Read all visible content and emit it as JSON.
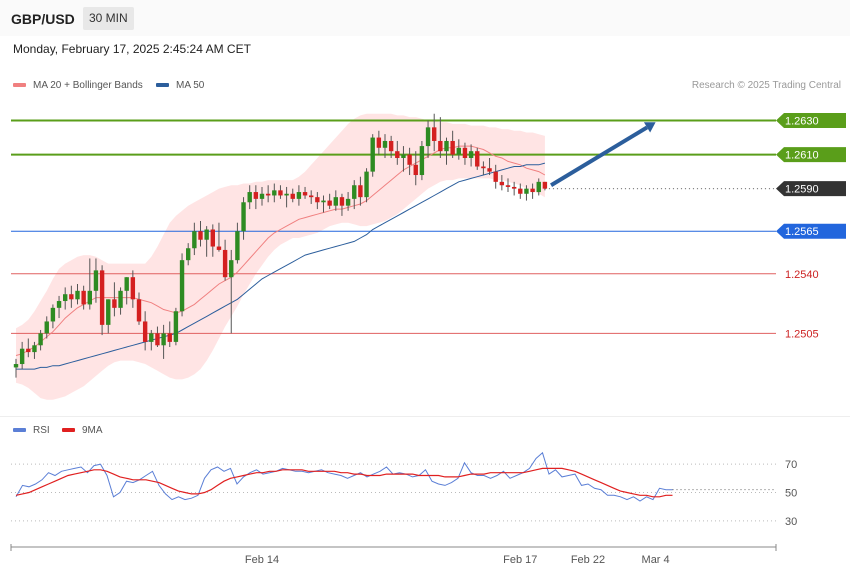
{
  "header": {
    "symbol": "GBP/USD",
    "timeframe": "30 MIN"
  },
  "datetime": "Monday, February 17, 2025 2:45:24 AM CET",
  "legend": {
    "ma20": {
      "label": "MA 20 + Bollinger Bands",
      "color": "#f08080"
    },
    "ma50": {
      "label": "MA 50",
      "color": "#2c5e9c"
    },
    "rsi": {
      "label": "RSI",
      "color": "#5b7fd6"
    },
    "rsi_ma": {
      "label": "9MA",
      "color": "#e02020"
    }
  },
  "copyright": "Research © 2025 Trading Central",
  "chart_data": [
    {
      "type": "candlestick",
      "title": "",
      "ylim": [
        1.246,
        1.2645
      ],
      "levels": [
        {
          "value": 1.263,
          "label": "1.2630",
          "kind": "resistance",
          "color": "#5a9e1a"
        },
        {
          "value": 1.261,
          "label": "1.2610",
          "kind": "resistance",
          "color": "#5a9e1a"
        },
        {
          "value": 1.259,
          "label": "1.2590",
          "kind": "last",
          "color": "#333333"
        },
        {
          "value": 1.2565,
          "label": "1.2565",
          "kind": "pivot",
          "color": "#2266dd"
        },
        {
          "value": 1.254,
          "label": "1.2540",
          "kind": "support",
          "color": "#e06060"
        },
        {
          "value": 1.2505,
          "label": "1.2505",
          "kind": "support",
          "color": "#e06060"
        }
      ],
      "candles": [
        [
          1.2485,
          1.249,
          1.2479,
          1.2487
        ],
        [
          1.2487,
          1.25,
          1.2484,
          1.2496
        ],
        [
          1.2496,
          1.2502,
          1.2491,
          1.2494
        ],
        [
          1.2494,
          1.25,
          1.249,
          1.2498
        ],
        [
          1.2498,
          1.2507,
          1.2495,
          1.2505
        ],
        [
          1.2505,
          1.2515,
          1.2502,
          1.2512
        ],
        [
          1.2512,
          1.2522,
          1.2508,
          1.252
        ],
        [
          1.252,
          1.2527,
          1.2514,
          1.2524
        ],
        [
          1.2524,
          1.2532,
          1.2519,
          1.2528
        ],
        [
          1.2528,
          1.2533,
          1.252,
          1.2525
        ],
        [
          1.2525,
          1.2534,
          1.2522,
          1.253
        ],
        [
          1.253,
          1.2533,
          1.2519,
          1.2522
        ],
        [
          1.2522,
          1.2549,
          1.2519,
          1.253
        ],
        [
          1.253,
          1.2549,
          1.2523,
          1.2542
        ],
        [
          1.2542,
          1.2545,
          1.2504,
          1.251
        ],
        [
          1.251,
          1.2525,
          1.2505,
          1.2525
        ],
        [
          1.2525,
          1.2535,
          1.2515,
          1.252
        ],
        [
          1.252,
          1.2532,
          1.2516,
          1.253
        ],
        [
          1.253,
          1.2538,
          1.2522,
          1.2538
        ],
        [
          1.2538,
          1.2542,
          1.252,
          1.2525
        ],
        [
          1.2525,
          1.2529,
          1.251,
          1.2512
        ],
        [
          1.2512,
          1.2518,
          1.2495,
          1.25
        ],
        [
          1.25,
          1.2507,
          1.2495,
          1.2505
        ],
        [
          1.2505,
          1.2509,
          1.2497,
          1.2498
        ],
        [
          1.2498,
          1.251,
          1.249,
          1.2505
        ],
        [
          1.2505,
          1.2512,
          1.2497,
          1.25
        ],
        [
          1.25,
          1.252,
          1.2498,
          1.2518
        ],
        [
          1.2518,
          1.2552,
          1.2515,
          1.2548
        ],
        [
          1.2548,
          1.2558,
          1.2545,
          1.2555
        ],
        [
          1.2555,
          1.257,
          1.2551,
          1.2565
        ],
        [
          1.2565,
          1.2571,
          1.2556,
          1.256
        ],
        [
          1.256,
          1.2568,
          1.255,
          1.2566
        ],
        [
          1.2566,
          1.2569,
          1.255,
          1.2556
        ],
        [
          1.2556,
          1.257,
          1.2553,
          1.2554
        ],
        [
          1.2554,
          1.256,
          1.2536,
          1.2538
        ],
        [
          1.2538,
          1.2554,
          1.2505,
          1.2548
        ],
        [
          1.2548,
          1.257,
          1.2546,
          1.2565
        ],
        [
          1.2565,
          1.2585,
          1.256,
          1.2582
        ],
        [
          1.2582,
          1.2592,
          1.2578,
          1.2588
        ],
        [
          1.2588,
          1.2592,
          1.2578,
          1.2584
        ],
        [
          1.2584,
          1.2591,
          1.258,
          1.2587
        ],
        [
          1.2587,
          1.2592,
          1.2582,
          1.2586
        ],
        [
          1.2586,
          1.2593,
          1.2582,
          1.2589
        ],
        [
          1.2589,
          1.2592,
          1.2584,
          1.2586
        ],
        [
          1.2586,
          1.2591,
          1.2579,
          1.2587
        ],
        [
          1.2587,
          1.259,
          1.2582,
          1.2584
        ],
        [
          1.2584,
          1.2592,
          1.258,
          1.2588
        ],
        [
          1.2588,
          1.2591,
          1.2584,
          1.2586
        ],
        [
          1.2586,
          1.2589,
          1.2581,
          1.2585
        ],
        [
          1.2585,
          1.2588,
          1.2578,
          1.2582
        ],
        [
          1.2582,
          1.2586,
          1.2576,
          1.2583
        ],
        [
          1.2583,
          1.2587,
          1.2578,
          1.258
        ],
        [
          1.258,
          1.2589,
          1.2577,
          1.2585
        ],
        [
          1.2585,
          1.2587,
          1.2574,
          1.258
        ],
        [
          1.258,
          1.2588,
          1.2577,
          1.2584
        ],
        [
          1.2584,
          1.2595,
          1.2578,
          1.2592
        ],
        [
          1.2592,
          1.2597,
          1.258,
          1.2585
        ],
        [
          1.2585,
          1.2602,
          1.2582,
          1.26
        ],
        [
          1.26,
          1.2622,
          1.2597,
          1.262
        ],
        [
          1.262,
          1.2624,
          1.261,
          1.2614
        ],
        [
          1.2614,
          1.2622,
          1.2608,
          1.2618
        ],
        [
          1.2618,
          1.2621,
          1.2608,
          1.2612
        ],
        [
          1.2612,
          1.2618,
          1.2604,
          1.2608
        ],
        [
          1.2608,
          1.2615,
          1.26,
          1.261
        ],
        [
          1.261,
          1.2614,
          1.2598,
          1.2604
        ],
        [
          1.2604,
          1.2612,
          1.2592,
          1.2598
        ],
        [
          1.2598,
          1.2618,
          1.2595,
          1.2615
        ],
        [
          1.2615,
          1.263,
          1.2608,
          1.2626
        ],
        [
          1.2626,
          1.2634,
          1.2612,
          1.2618
        ],
        [
          1.2618,
          1.2632,
          1.2608,
          1.2612
        ],
        [
          1.2612,
          1.262,
          1.2604,
          1.2618
        ],
        [
          1.2618,
          1.2624,
          1.2608,
          1.261
        ],
        [
          1.261,
          1.2619,
          1.2607,
          1.2614
        ],
        [
          1.2614,
          1.2617,
          1.2604,
          1.2608
        ],
        [
          1.2608,
          1.2616,
          1.2603,
          1.2612
        ],
        [
          1.2612,
          1.2614,
          1.2601,
          1.2603
        ],
        [
          1.2603,
          1.2606,
          1.2598,
          1.2602
        ],
        [
          1.2602,
          1.2608,
          1.2598,
          1.26
        ],
        [
          1.26,
          1.2604,
          1.259,
          1.2594
        ],
        [
          1.2594,
          1.2598,
          1.2589,
          1.2592
        ],
        [
          1.2592,
          1.2596,
          1.2588,
          1.2591
        ],
        [
          1.2591,
          1.2594,
          1.2586,
          1.259
        ],
        [
          1.259,
          1.2593,
          1.2584,
          1.2587
        ],
        [
          1.2587,
          1.2592,
          1.2583,
          1.259
        ],
        [
          1.259,
          1.2593,
          1.2584,
          1.2588
        ],
        [
          1.2588,
          1.2596,
          1.2586,
          1.2594
        ],
        [
          1.2594,
          1.2594,
          1.2589,
          1.259
        ]
      ],
      "ma20": [
        1.2492,
        1.2493,
        1.2495,
        1.2497,
        1.25,
        1.2503,
        1.2506,
        1.251,
        1.2514,
        1.2517,
        1.252,
        1.2522,
        1.2524,
        1.2526,
        1.2526,
        1.2526,
        1.2526,
        1.2526,
        1.2526,
        1.2526,
        1.2525,
        1.2524,
        1.2523,
        1.2521,
        1.2519,
        1.2518,
        1.2517,
        1.2518,
        1.252,
        1.2522,
        1.2525,
        1.2528,
        1.2531,
        1.2534,
        1.2536,
        1.2538,
        1.2541,
        1.2545,
        1.2549,
        1.2553,
        1.2557,
        1.2561,
        1.2564,
        1.2566,
        1.2568,
        1.257,
        1.2572,
        1.2573,
        1.2574,
        1.2575,
        1.2576,
        1.2577,
        1.2578,
        1.2578,
        1.2579,
        1.258,
        1.2581,
        1.2583,
        1.2586,
        1.2589,
        1.2592,
        1.2595,
        1.2598,
        1.2601,
        1.2603,
        1.2605,
        1.2607,
        1.2609,
        1.2611,
        1.2613,
        1.2614,
        1.2614,
        1.2615,
        1.2615,
        1.2615,
        1.2614,
        1.2613,
        1.2611,
        1.2609,
        1.2608,
        1.2606,
        1.2605,
        1.2604,
        1.2602,
        1.2601,
        1.26,
        1.2598
      ],
      "ma50": [
        1.2484,
        1.2484,
        1.2484,
        1.2484,
        1.2485,
        1.2485,
        1.2486,
        1.2486,
        1.2487,
        1.2488,
        1.2489,
        1.249,
        1.2491,
        1.2492,
        1.2493,
        1.2494,
        1.2495,
        1.2496,
        1.2497,
        1.2498,
        1.2499,
        1.25,
        1.2501,
        1.2502,
        1.2503,
        1.2504,
        1.2505,
        1.2507,
        1.2509,
        1.2511,
        1.2513,
        1.2515,
        1.2517,
        1.2519,
        1.2521,
        1.2523,
        1.2525,
        1.2528,
        1.2531,
        1.2534,
        1.2537,
        1.2539,
        1.2541,
        1.2543,
        1.2545,
        1.2547,
        1.2549,
        1.2551,
        1.2552,
        1.2553,
        1.2554,
        1.2555,
        1.2556,
        1.2557,
        1.2558,
        1.2559,
        1.2561,
        1.2563,
        1.2566,
        1.2568,
        1.257,
        1.2572,
        1.2574,
        1.2576,
        1.2578,
        1.258,
        1.2582,
        1.2584,
        1.2586,
        1.2588,
        1.259,
        1.2592,
        1.2594,
        1.2595,
        1.2596,
        1.2597,
        1.2598,
        1.2599,
        1.26,
        1.2601,
        1.2602,
        1.2603,
        1.2603,
        1.2604,
        1.2604,
        1.2604,
        1.2605
      ],
      "bb_upper": [
        1.2508,
        1.251,
        1.2513,
        1.2518,
        1.2524,
        1.253,
        1.2537,
        1.2543,
        1.2546,
        1.2548,
        1.255,
        1.2551,
        1.2551,
        1.255,
        1.2548,
        1.2546,
        1.2546,
        1.2546,
        1.2546,
        1.2546,
        1.2546,
        1.2546,
        1.255,
        1.2556,
        1.2563,
        1.257,
        1.2574,
        1.2577,
        1.258,
        1.2582,
        1.2584,
        1.2586,
        1.2588,
        1.259,
        1.2591,
        1.2592,
        1.2592,
        1.2593,
        1.2593,
        1.2594,
        1.2594,
        1.2595,
        1.2595,
        1.2595,
        1.2595,
        1.2595,
        1.2597,
        1.26,
        1.2604,
        1.2608,
        1.2612,
        1.2616,
        1.262,
        1.2624,
        1.2628,
        1.2631,
        1.2633,
        1.2634,
        1.2634,
        1.2634,
        1.2634,
        1.2634,
        1.2633,
        1.2633,
        1.2632,
        1.2632,
        1.2631,
        1.263,
        1.263,
        1.2629,
        1.2629,
        1.2628,
        1.2628,
        1.2628,
        1.2627,
        1.2627,
        1.2627,
        1.2626,
        1.2626,
        1.2625,
        1.2625,
        1.2624,
        1.2624,
        1.2623,
        1.2623,
        1.2622,
        1.2621
      ],
      "bb_lower": [
        1.2476,
        1.2475,
        1.2473,
        1.247,
        1.2467,
        1.2466,
        1.2466,
        1.2467,
        1.2468,
        1.247,
        1.2472,
        1.2474,
        1.2477,
        1.248,
        1.2483,
        1.2486,
        1.2488,
        1.2489,
        1.2489,
        1.2489,
        1.2488,
        1.2487,
        1.2485,
        1.2483,
        1.2481,
        1.2479,
        1.2478,
        1.2478,
        1.2479,
        1.2481,
        1.2484,
        1.2489,
        1.2495,
        1.2502,
        1.2509,
        1.2515,
        1.2521,
        1.2528,
        1.2534,
        1.254,
        1.2545,
        1.255,
        1.2554,
        1.2557,
        1.2559,
        1.2561,
        1.2561,
        1.2562,
        1.2563,
        1.2564,
        1.2566,
        1.2568,
        1.2569,
        1.257,
        1.257,
        1.2569,
        1.2568,
        1.2568,
        1.2569,
        1.257,
        1.2571,
        1.2573,
        1.2575,
        1.2578,
        1.2581,
        1.2584,
        1.2587,
        1.259,
        1.2592,
        1.2594,
        1.2595,
        1.2595,
        1.2596,
        1.2596,
        1.2596,
        1.2596,
        1.2596,
        1.2596,
        1.2595,
        1.2595,
        1.2594,
        1.2593,
        1.2592,
        1.259,
        1.2589,
        1.2587,
        1.2585
      ],
      "arrow": {
        "from_index": 87,
        "from_value": 1.2592,
        "to_index": 104,
        "to_value": 1.2629
      },
      "x_ticks": [
        {
          "index": 40,
          "label": "Feb 14"
        },
        {
          "index": 82,
          "label": "Feb 17"
        },
        {
          "index": 93,
          "label": "Feb 22"
        },
        {
          "index": 104,
          "label": "Mar 4"
        }
      ]
    },
    {
      "type": "line",
      "title": "",
      "ylim": [
        20,
        80
      ],
      "yticks": [
        70,
        50,
        30
      ],
      "rsi": [
        47,
        55,
        54,
        56,
        59,
        64,
        62,
        65,
        66,
        67,
        68,
        64,
        69,
        70,
        62,
        47,
        50,
        58,
        57,
        59,
        62,
        65,
        55,
        49,
        45,
        47,
        45,
        46,
        48,
        60,
        66,
        68,
        65,
        67,
        56,
        61,
        64,
        66,
        63,
        64,
        65,
        67,
        66,
        65,
        65,
        64,
        65,
        66,
        64,
        63,
        62,
        60,
        62,
        64,
        61,
        63,
        65,
        68,
        63,
        64,
        63,
        61,
        62,
        66,
        58,
        56,
        55,
        57,
        60,
        71,
        64,
        62,
        62,
        60,
        62,
        65,
        60,
        62,
        64,
        67,
        74,
        78,
        63,
        66,
        61,
        62,
        63,
        55,
        56,
        53,
        52,
        48,
        48,
        47,
        45,
        47,
        44,
        47,
        45,
        53,
        52,
        52
      ],
      "rsi_ma": [
        48,
        49,
        50,
        52,
        54,
        56,
        58,
        60,
        62,
        63,
        64,
        65,
        66,
        66,
        65,
        63,
        61,
        60,
        59,
        59,
        59,
        58,
        57,
        55,
        53,
        51,
        50,
        49,
        49,
        50,
        52,
        55,
        58,
        60,
        61,
        62,
        63,
        64,
        64,
        65,
        65,
        66,
        66,
        66,
        66,
        65,
        65,
        65,
        65,
        65,
        64,
        64,
        63,
        63,
        62,
        62,
        62,
        63,
        63,
        63,
        63,
        63,
        62,
        62,
        62,
        62,
        61,
        61,
        61,
        62,
        63,
        63,
        63,
        64,
        64,
        64,
        64,
        64,
        64,
        65,
        66,
        67,
        67,
        67,
        67,
        66,
        65,
        63,
        61,
        59,
        57,
        55,
        53,
        51,
        50,
        49,
        48,
        48,
        47,
        47,
        48,
        48
      ]
    }
  ]
}
